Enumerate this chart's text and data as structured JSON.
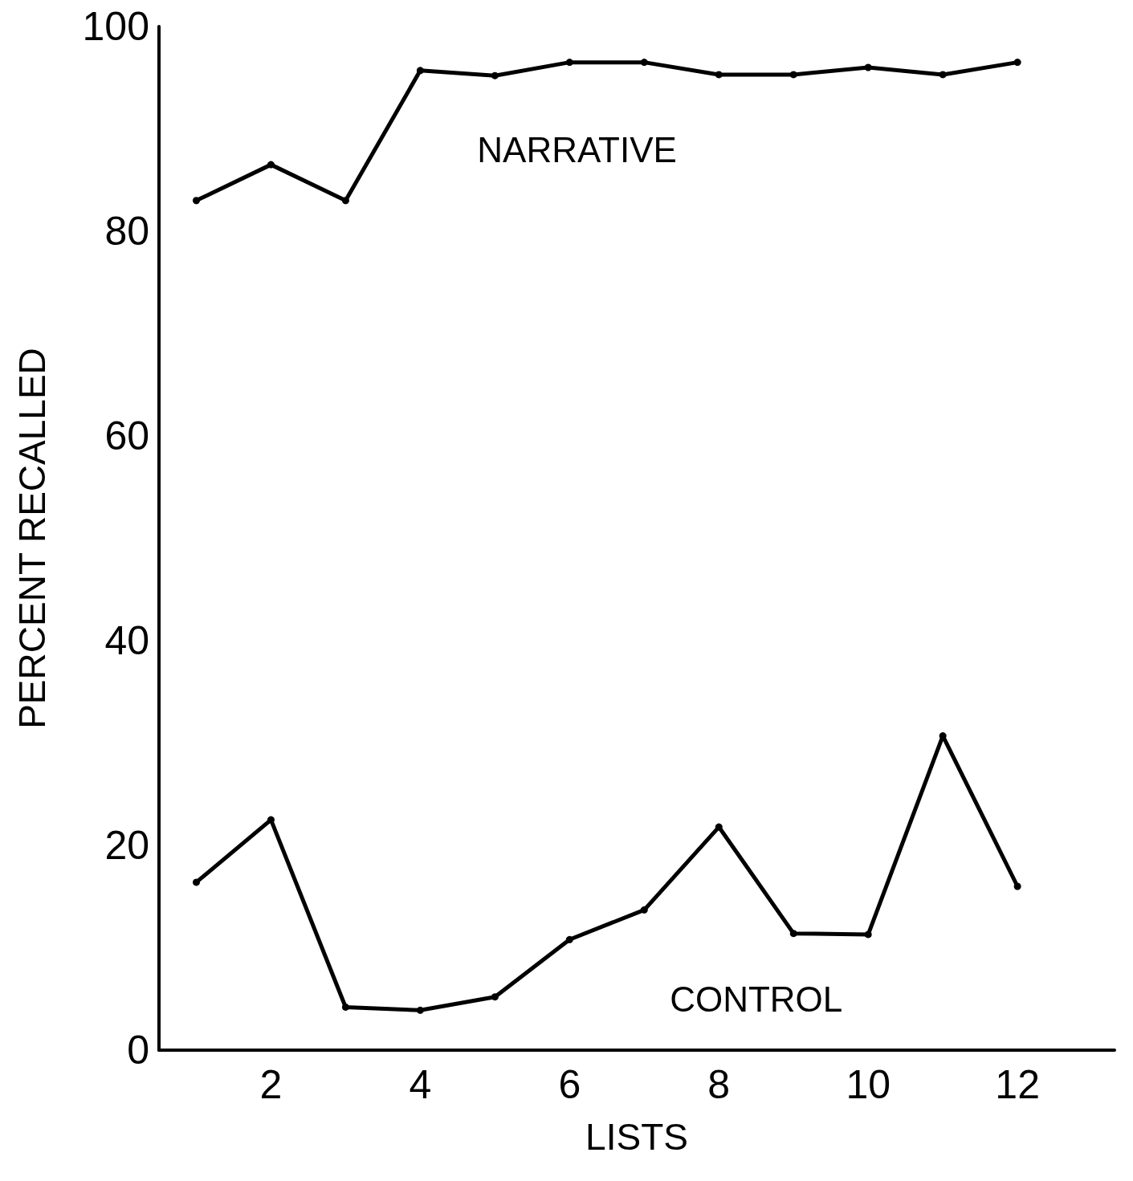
{
  "chart_data": {
    "type": "line",
    "xlabel": "LISTS",
    "ylabel": "PERCENT RECALLED",
    "x": [
      1,
      2,
      3,
      4,
      5,
      6,
      7,
      8,
      9,
      10,
      11,
      12
    ],
    "series": [
      {
        "name": "NARRATIVE",
        "color": "#000000",
        "values": [
          83,
          86.5,
          83,
          95.7,
          95.2,
          96.5,
          96.5,
          95.3,
          95.3,
          96,
          95.3,
          96.5
        ]
      },
      {
        "name": "CONTROL",
        "color": "#000000",
        "values": [
          16.4,
          22.5,
          4.2,
          3.9,
          5.2,
          10.8,
          13.7,
          21.8,
          11.4,
          11.3,
          30.7,
          16
        ]
      }
    ],
    "xlim": [
      0.5,
      13.3
    ],
    "xticks": [
      2,
      4,
      6,
      8,
      10,
      12
    ],
    "ylim": [
      0,
      100
    ],
    "yticks": [
      0,
      20,
      40,
      60,
      80,
      100
    ],
    "grid": false,
    "legend": false,
    "marker": "circle",
    "line_style": "solid"
  }
}
